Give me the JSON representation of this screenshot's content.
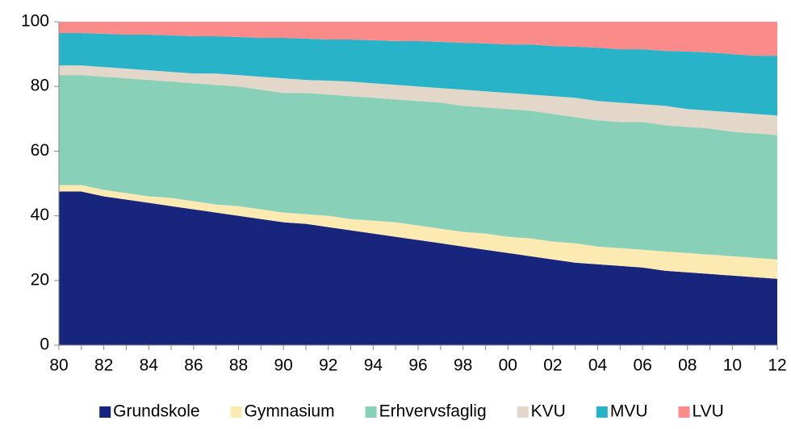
{
  "chart_data": {
    "type": "stacked_area",
    "categories": [
      "80",
      null,
      "82",
      null,
      "84",
      null,
      "86",
      null,
      "88",
      null,
      "90",
      null,
      "92",
      null,
      "94",
      null,
      "96",
      null,
      "98",
      null,
      "00",
      null,
      "02",
      null,
      "04",
      null,
      "06",
      null,
      "08",
      null,
      "10",
      null,
      "12"
    ],
    "series": [
      {
        "name": "Grundskole",
        "color": "#17257c",
        "values": [
          47.5,
          47.5,
          46,
          45,
          44,
          43,
          42,
          41,
          40,
          39,
          38,
          37.5,
          36.5,
          35.5,
          34.5,
          33.5,
          32.5,
          31.5,
          30.5,
          29.5,
          28.5,
          27.5,
          26.5,
          25.5,
          25,
          24.5,
          24,
          23,
          22.5,
          22,
          21.5,
          21,
          20.5
        ]
      },
      {
        "name": "Gymnasium",
        "color": "#fde9b2",
        "values": [
          2,
          2,
          2,
          2,
          2,
          2.5,
          2.5,
          2.5,
          3,
          3,
          3,
          3,
          3.5,
          3.5,
          4,
          4.5,
          4.5,
          4.5,
          4.5,
          5,
          5,
          5.5,
          5.5,
          6,
          5.5,
          5.5,
          5.5,
          6,
          6,
          6,
          6,
          6,
          6
        ]
      },
      {
        "name": "Erhvervsfaglig",
        "color": "#88d1b8",
        "values": [
          34,
          34,
          35,
          35.5,
          36,
          36,
          36.5,
          37,
          37,
          37,
          37,
          37.5,
          37.5,
          38,
          38,
          38,
          38.5,
          39,
          39,
          39,
          39.5,
          39.5,
          39.5,
          39,
          39,
          39,
          39.5,
          39,
          39,
          39,
          38.5,
          38.5,
          38.5
        ]
      },
      {
        "name": "KVU",
        "color": "#e2d7c9",
        "values": [
          3,
          3,
          3,
          3,
          3,
          3,
          3,
          3.5,
          3.5,
          4,
          4.5,
          4,
          4.3,
          4.5,
          4.5,
          4.5,
          4.5,
          4.5,
          5,
          5,
          5,
          5,
          5.5,
          6,
          6,
          6,
          5.5,
          6,
          5.5,
          5.5,
          6,
          6,
          6
        ]
      },
      {
        "name": "MVU",
        "color": "#29b3c9",
        "values": [
          10,
          10,
          10.3,
          10.5,
          11,
          11.3,
          11.5,
          11.5,
          11.8,
          12,
          12.5,
          12.8,
          12.7,
          13,
          13.3,
          13.5,
          14,
          14.3,
          14.5,
          14.8,
          15,
          15.5,
          15.5,
          15.8,
          16.5,
          16.5,
          17,
          17,
          17.8,
          18,
          18,
          18,
          18.5
        ]
      },
      {
        "name": "LVU",
        "color": "#fb8b8b",
        "values": [
          3.5,
          3.5,
          3.7,
          4,
          4,
          4.2,
          4.5,
          4.5,
          4.7,
          5,
          5,
          5.2,
          5.5,
          5.5,
          5.7,
          6,
          6,
          6.2,
          6.5,
          6.7,
          7,
          7,
          7.5,
          7.7,
          8,
          8.5,
          8.5,
          9,
          9.2,
          9.5,
          10,
          10.5,
          10.5
        ]
      }
    ],
    "ylim": [
      0,
      100
    ],
    "yticks": [
      0,
      20,
      40,
      60,
      80,
      100
    ],
    "legend": "bottom"
  }
}
